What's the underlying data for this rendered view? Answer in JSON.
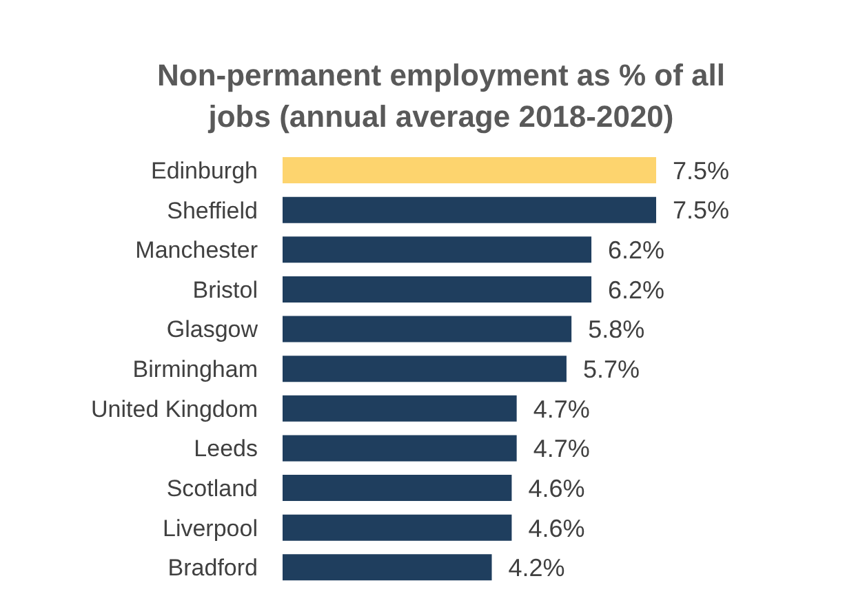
{
  "chart_data": {
    "type": "bar",
    "orientation": "horizontal",
    "title": "Non-permanent employment as % of all jobs (annual average 2018-2020)",
    "categories": [
      "Edinburgh",
      "Sheffield",
      "Manchester",
      "Bristol",
      "Glasgow",
      "Birmingham",
      "United Kingdom",
      "Leeds",
      "Scotland",
      "Liverpool",
      "Bradford"
    ],
    "values": [
      7.5,
      7.5,
      6.2,
      6.2,
      5.8,
      5.7,
      4.7,
      4.7,
      4.6,
      4.6,
      4.2
    ],
    "value_labels": [
      "7.5%",
      "7.5%",
      "6.2%",
      "6.2%",
      "5.8%",
      "5.7%",
      "4.7%",
      "4.7%",
      "4.6%",
      "4.6%",
      "4.2%"
    ],
    "colors": [
      "#fdd46e",
      "#1f3e5e",
      "#1f3e5e",
      "#1f3e5e",
      "#1f3e5e",
      "#1f3e5e",
      "#1f3e5e",
      "#1f3e5e",
      "#1f3e5e",
      "#1f3e5e",
      "#1f3e5e"
    ],
    "grid": false,
    "legend": false
  }
}
